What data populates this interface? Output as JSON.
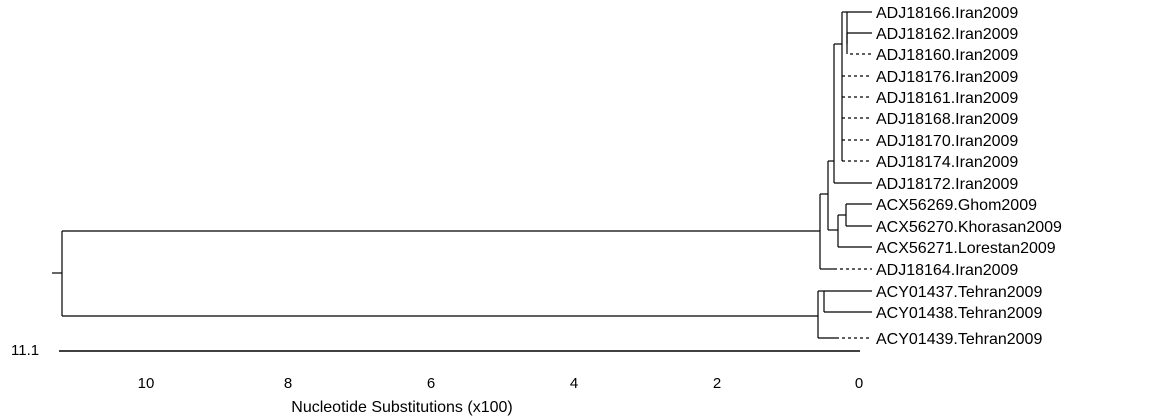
{
  "tree": {
    "leaves": [
      "ADJ18166.Iran2009",
      "ADJ18162.Iran2009",
      "ADJ18160.Iran2009",
      "ADJ18176.Iran2009",
      "ADJ18161.Iran2009",
      "ADJ18168.Iran2009",
      "ADJ18170.Iran2009",
      "ADJ18174.Iran2009",
      "ADJ18172.Iran2009",
      "ACX56269.Ghom2009",
      "ACX56270.Khorasan2009",
      "ACX56271.Lorestan2009",
      "ADJ18164.Iran2009",
      "ACY01437.Tehran2009",
      "ACY01438.Tehran2009",
      "ACY01439.Tehran2009"
    ]
  },
  "axis": {
    "title": "Nucleotide Substitutions (x100)",
    "ticks": [
      "10",
      "8",
      "6",
      "4",
      "2",
      "0"
    ],
    "scale_bar_label": "11.1"
  }
}
